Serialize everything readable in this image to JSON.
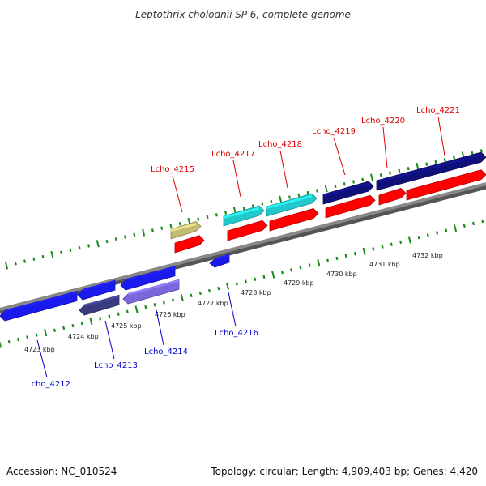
{
  "title": "Leptothrix cholodnii SP-6, complete genome",
  "footer": {
    "accession": "Accession: NC_010524",
    "summary": "Topology: circular; Length: 4,909,403 bp; Genes: 4,420"
  },
  "colors": {
    "backbone": "#888888",
    "tick": "#1a8a1a",
    "label_above": "#dd0000",
    "label_below": "#0000cc",
    "cds_red": "#ff0000",
    "cds_cyan": "#22c8cc",
    "cds_navy": "#10107a",
    "cds_blue": "#1a1aee",
    "cds_khaki": "#c2bb72",
    "cds_slate": "#3a3a80",
    "cds_lavender": "#7a66dd"
  },
  "scale": {
    "unit": "kbp",
    "labels": [
      "4723 kbp",
      "4724 kbp",
      "4725 kbp",
      "4726 kbp",
      "4727 kbp",
      "4728 kbp",
      "4729 kbp",
      "4730 kbp",
      "4731 kbp",
      "4732 kbp"
    ]
  },
  "gene_labels": {
    "above": [
      "Lcho_4215",
      "Lcho_4217",
      "Lcho_4218",
      "Lcho_4219",
      "Lcho_4220",
      "Lcho_4221"
    ],
    "below": [
      "Lcho_4212",
      "Lcho_4213",
      "Lcho_4214",
      "Lcho_4216"
    ]
  },
  "features": [
    {
      "id": "red-1",
      "color": "cds_red",
      "strand": "forward"
    },
    {
      "id": "red-2",
      "color": "cds_red",
      "strand": "forward"
    },
    {
      "id": "red-3",
      "color": "cds_red",
      "strand": "forward"
    },
    {
      "id": "red-4",
      "color": "cds_red",
      "strand": "forward"
    },
    {
      "id": "red-5",
      "color": "cds_red",
      "strand": "forward"
    },
    {
      "id": "red-6",
      "color": "cds_red",
      "strand": "forward"
    },
    {
      "id": "khaki-1",
      "color": "cds_khaki",
      "strand": "forward"
    },
    {
      "id": "cyan-1",
      "color": "cds_cyan",
      "strand": "forward"
    },
    {
      "id": "cyan-2",
      "color": "cds_cyan",
      "strand": "forward"
    },
    {
      "id": "navy-1",
      "color": "cds_navy",
      "strand": "forward"
    },
    {
      "id": "navy-2",
      "color": "cds_navy",
      "strand": "forward"
    },
    {
      "id": "blue-1",
      "color": "cds_blue",
      "strand": "reverse"
    },
    {
      "id": "blue-2",
      "color": "cds_blue",
      "strand": "reverse"
    },
    {
      "id": "blue-3",
      "color": "cds_blue",
      "strand": "reverse"
    },
    {
      "id": "blue-4",
      "color": "cds_blue",
      "strand": "reverse"
    },
    {
      "id": "slate-1",
      "color": "cds_slate",
      "strand": "reverse"
    },
    {
      "id": "lavender-1",
      "color": "cds_lavender",
      "strand": "reverse"
    }
  ]
}
